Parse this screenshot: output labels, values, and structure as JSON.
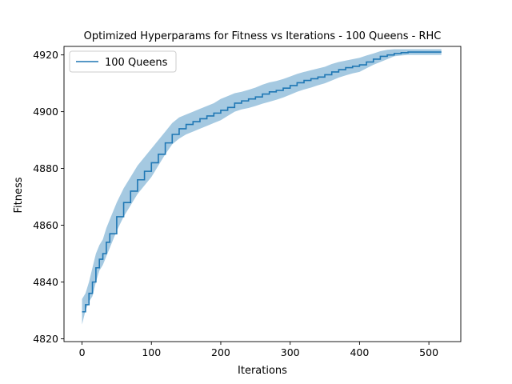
{
  "chart_data": {
    "type": "line",
    "title": "Optimized Hyperparams for Fitness vs Iterations - 100 Queens - RHC",
    "xlabel": "Iterations",
    "ylabel": "Fitness",
    "xlim": [
      -26,
      546
    ],
    "ylim": [
      4819,
      4923
    ],
    "xticks": [
      0,
      100,
      200,
      300,
      400,
      500
    ],
    "yticks": [
      4820,
      4840,
      4860,
      4880,
      4900,
      4920
    ],
    "grid": false,
    "legend": {
      "position": "top-left"
    },
    "series": [
      {
        "name": "100 Queens",
        "color": "#1f77b4",
        "band_color": "#1f77b4",
        "x": [
          0,
          5,
          10,
          15,
          20,
          25,
          30,
          35,
          40,
          50,
          60,
          70,
          80,
          90,
          100,
          110,
          120,
          130,
          140,
          150,
          160,
          170,
          180,
          190,
          200,
          210,
          220,
          230,
          240,
          250,
          260,
          270,
          280,
          290,
          300,
          310,
          320,
          330,
          340,
          350,
          360,
          370,
          380,
          390,
          400,
          410,
          420,
          430,
          440,
          450,
          460,
          470,
          480,
          490,
          500,
          510,
          518
        ],
        "mean": [
          4829.5,
          4832.0,
          4836.0,
          4840.0,
          4845.0,
          4848.0,
          4850.0,
          4854.0,
          4857.0,
          4863.0,
          4868.0,
          4872.0,
          4876.0,
          4879.0,
          4882.0,
          4885.0,
          4889.0,
          4892.0,
          4894.0,
          4895.5,
          4896.5,
          4897.5,
          4898.5,
          4899.5,
          4900.5,
          4901.5,
          4903.0,
          4903.8,
          4904.5,
          4905.2,
          4906.2,
          4907.0,
          4907.5,
          4908.3,
          4909.2,
          4910.2,
          4911.0,
          4911.6,
          4912.2,
          4913.0,
          4914.0,
          4914.8,
          4915.5,
          4916.0,
          4916.5,
          4917.5,
          4918.5,
          4919.5,
          4920.0,
          4920.5,
          4920.8,
          4921.0,
          4921.0,
          4921.0,
          4921.0,
          4921.0,
          4921.0
        ],
        "lower": [
          4825.0,
          4830.0,
          4833.0,
          4835.0,
          4840.0,
          4844.0,
          4846.0,
          4849.0,
          4852.0,
          4858.0,
          4863.0,
          4867.0,
          4871.0,
          4874.0,
          4877.0,
          4881.0,
          4885.0,
          4888.5,
          4890.5,
          4892.0,
          4893.0,
          4894.0,
          4895.0,
          4896.0,
          4897.0,
          4898.5,
          4900.0,
          4900.8,
          4901.3,
          4902.0,
          4902.8,
          4903.5,
          4904.2,
          4905.0,
          4906.0,
          4907.0,
          4907.8,
          4908.5,
          4909.3,
          4910.0,
          4911.0,
          4912.0,
          4912.8,
          4913.5,
          4914.0,
          4915.3,
          4916.5,
          4917.5,
          4918.5,
          4919.5,
          4919.8,
          4920.0,
          4920.0,
          4920.0,
          4920.0,
          4920.0,
          4920.0
        ],
        "upper": [
          4834.0,
          4836.0,
          4840.0,
          4845.0,
          4850.0,
          4853.0,
          4855.0,
          4859.0,
          4862.0,
          4868.0,
          4873.0,
          4877.0,
          4881.0,
          4884.0,
          4887.0,
          4890.0,
          4893.0,
          4896.0,
          4898.0,
          4899.0,
          4900.0,
          4901.0,
          4902.0,
          4903.0,
          4904.5,
          4905.5,
          4906.5,
          4907.0,
          4907.7,
          4908.5,
          4909.5,
          4910.3,
          4910.8,
          4911.5,
          4912.4,
          4913.3,
          4914.0,
          4914.6,
          4915.2,
          4915.8,
          4916.8,
          4917.5,
          4918.0,
          4918.5,
          4919.0,
          4919.8,
          4920.5,
          4921.3,
          4921.8,
          4922.0,
          4922.0,
          4922.0,
          4922.0,
          4922.0,
          4922.0,
          4922.0,
          4922.0
        ]
      }
    ]
  }
}
